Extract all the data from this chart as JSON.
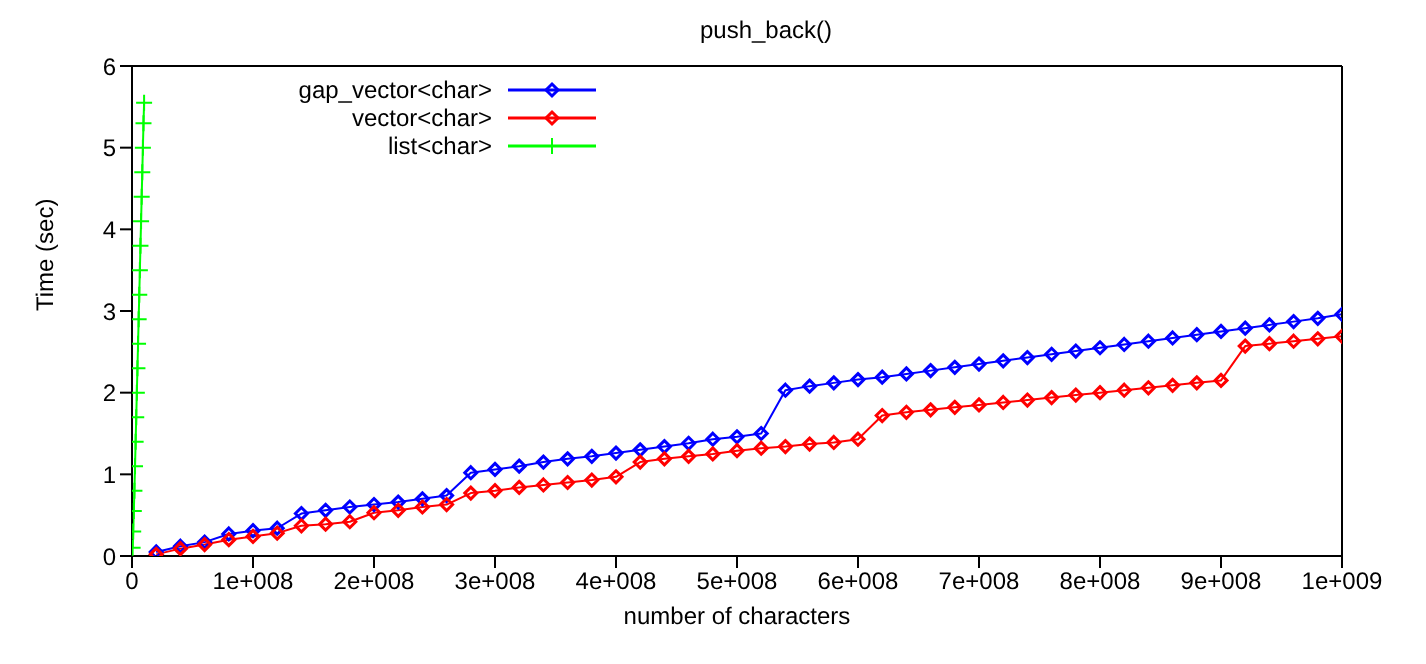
{
  "chart_data": {
    "type": "line",
    "title": "push_back()",
    "xlabel": "number of characters",
    "ylabel": "Time (sec)",
    "xlim": [
      0,
      1000000000
    ],
    "xticks": [
      0,
      {
        "value": 100000000,
        "label": "1e+008"
      },
      {
        "value": 200000000,
        "label": "2e+008"
      },
      {
        "value": 300000000,
        "label": "3e+008"
      },
      {
        "value": 400000000,
        "label": "4e+008"
      },
      {
        "value": 500000000,
        "label": "5e+008"
      },
      {
        "value": 600000000,
        "label": "6e+008"
      },
      {
        "value": 700000000,
        "label": "7e+008"
      },
      {
        "value": 800000000,
        "label": "8e+008"
      },
      {
        "value": 900000000,
        "label": "9e+008"
      },
      {
        "value": 1000000000,
        "label": "1e+009"
      }
    ],
    "ylim": [
      0,
      6
    ],
    "yticks": [
      0,
      1,
      2,
      3,
      4,
      5,
      6
    ],
    "legend": "top left",
    "line_style": "solid",
    "series": [
      {
        "name": "gap_vector<char>",
        "color": "#0000ff",
        "marker": "diamond",
        "x": [
          20000000,
          40000000,
          60000000,
          80000000,
          100000000,
          120000000,
          140000000,
          160000000,
          180000000,
          200000000,
          220000000,
          240000000,
          260000000,
          280000000,
          300000000,
          320000000,
          340000000,
          360000000,
          380000000,
          400000000,
          420000000,
          440000000,
          460000000,
          480000000,
          500000000,
          520000000,
          540000000,
          560000000,
          580000000,
          600000000,
          620000000,
          640000000,
          660000000,
          680000000,
          700000000,
          720000000,
          740000000,
          760000000,
          780000000,
          800000000,
          820000000,
          840000000,
          860000000,
          880000000,
          900000000,
          920000000,
          940000000,
          960000000,
          980000000,
          1000000000
        ],
        "values": [
          0.05,
          0.12,
          0.17,
          0.27,
          0.31,
          0.34,
          0.52,
          0.56,
          0.6,
          0.63,
          0.66,
          0.7,
          0.74,
          1.02,
          1.06,
          1.1,
          1.15,
          1.19,
          1.22,
          1.26,
          1.3,
          1.34,
          1.38,
          1.43,
          1.46,
          1.5,
          2.03,
          2.08,
          2.12,
          2.16,
          2.19,
          2.23,
          2.27,
          2.31,
          2.35,
          2.39,
          2.43,
          2.47,
          2.51,
          2.55,
          2.59,
          2.63,
          2.67,
          2.71,
          2.75,
          2.79,
          2.83,
          2.87,
          2.91,
          2.96
        ]
      },
      {
        "name": "vector<char>",
        "color": "#ff0000",
        "marker": "diamond",
        "x": [
          20000000,
          40000000,
          60000000,
          80000000,
          100000000,
          120000000,
          140000000,
          160000000,
          180000000,
          200000000,
          220000000,
          240000000,
          260000000,
          280000000,
          300000000,
          320000000,
          340000000,
          360000000,
          380000000,
          400000000,
          420000000,
          440000000,
          460000000,
          480000000,
          500000000,
          520000000,
          540000000,
          560000000,
          580000000,
          600000000,
          620000000,
          640000000,
          660000000,
          680000000,
          700000000,
          720000000,
          740000000,
          760000000,
          780000000,
          800000000,
          820000000,
          840000000,
          860000000,
          880000000,
          900000000,
          920000000,
          940000000,
          960000000,
          980000000,
          1000000000
        ],
        "values": [
          0.02,
          0.09,
          0.14,
          0.2,
          0.24,
          0.28,
          0.37,
          0.39,
          0.42,
          0.53,
          0.56,
          0.6,
          0.63,
          0.77,
          0.8,
          0.84,
          0.87,
          0.9,
          0.93,
          0.97,
          1.15,
          1.19,
          1.22,
          1.25,
          1.29,
          1.32,
          1.34,
          1.37,
          1.39,
          1.43,
          1.72,
          1.76,
          1.79,
          1.82,
          1.85,
          1.88,
          1.91,
          1.94,
          1.97,
          2.0,
          2.03,
          2.06,
          2.09,
          2.12,
          2.15,
          2.57,
          2.6,
          2.63,
          2.66,
          2.69
        ]
      },
      {
        "name": "list<char>",
        "color": "#00ff00",
        "marker": "cross",
        "x": [
          500000,
          1000000,
          1500000,
          2000000,
          2500000,
          3000000,
          3500000,
          4000000,
          4500000,
          5000000,
          5500000,
          6000000,
          6500000,
          7000000,
          7500000,
          8000000,
          8500000,
          9000000,
          9500000,
          10000000
        ],
        "values": [
          0.1,
          0.3,
          0.55,
          0.8,
          1.1,
          1.4,
          1.7,
          2.0,
          2.3,
          2.6,
          2.9,
          3.2,
          3.5,
          3.8,
          4.1,
          4.4,
          4.7,
          5.0,
          5.3,
          5.55
        ]
      }
    ]
  }
}
